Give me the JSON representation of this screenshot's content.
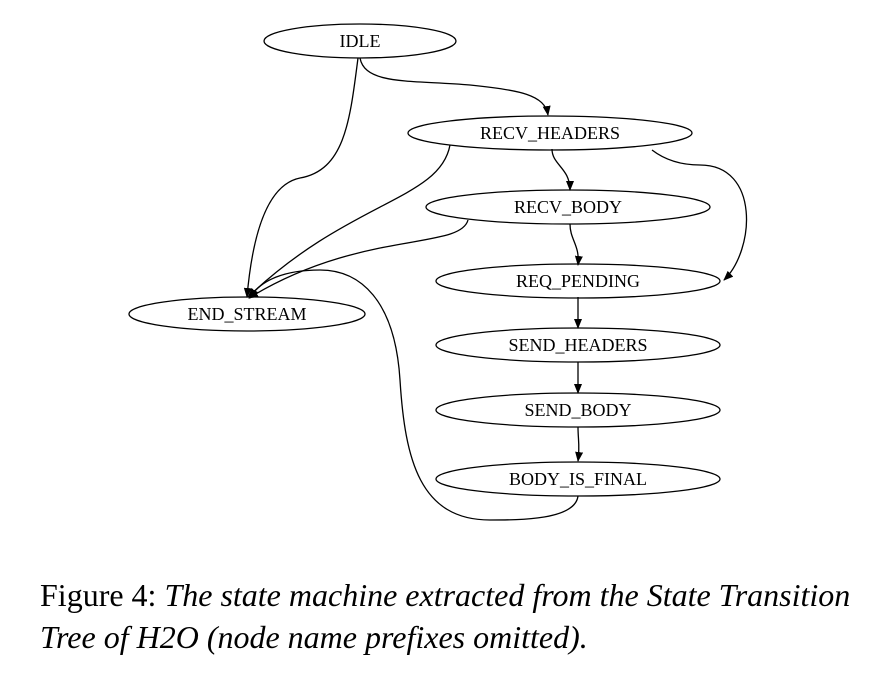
{
  "figure": {
    "label": "Figure 4:",
    "caption": "The state machine extracted from the State Transition Tree of H2O (node name prefixes omitted)."
  },
  "nodes": {
    "idle": "IDLE",
    "recv_headers": "RECV_HEADERS",
    "recv_body": "RECV_BODY",
    "req_pending": "REQ_PENDING",
    "send_headers": "SEND_HEADERS",
    "send_body": "SEND_BODY",
    "body_is_final": "BODY_IS_FINAL",
    "end_stream": "END_STREAM"
  },
  "edges": [
    {
      "from": "IDLE",
      "to": "RECV_HEADERS"
    },
    {
      "from": "IDLE",
      "to": "END_STREAM"
    },
    {
      "from": "RECV_HEADERS",
      "to": "RECV_BODY"
    },
    {
      "from": "RECV_HEADERS",
      "to": "END_STREAM"
    },
    {
      "from": "RECV_HEADERS",
      "to": "REQ_PENDING"
    },
    {
      "from": "RECV_BODY",
      "to": "REQ_PENDING"
    },
    {
      "from": "RECV_BODY",
      "to": "END_STREAM"
    },
    {
      "from": "REQ_PENDING",
      "to": "SEND_HEADERS"
    },
    {
      "from": "SEND_HEADERS",
      "to": "SEND_BODY"
    },
    {
      "from": "SEND_BODY",
      "to": "BODY_IS_FINAL"
    },
    {
      "from": "BODY_IS_FINAL",
      "to": "END_STREAM"
    }
  ],
  "colors": {
    "stroke": "#000000",
    "background": "#ffffff"
  }
}
